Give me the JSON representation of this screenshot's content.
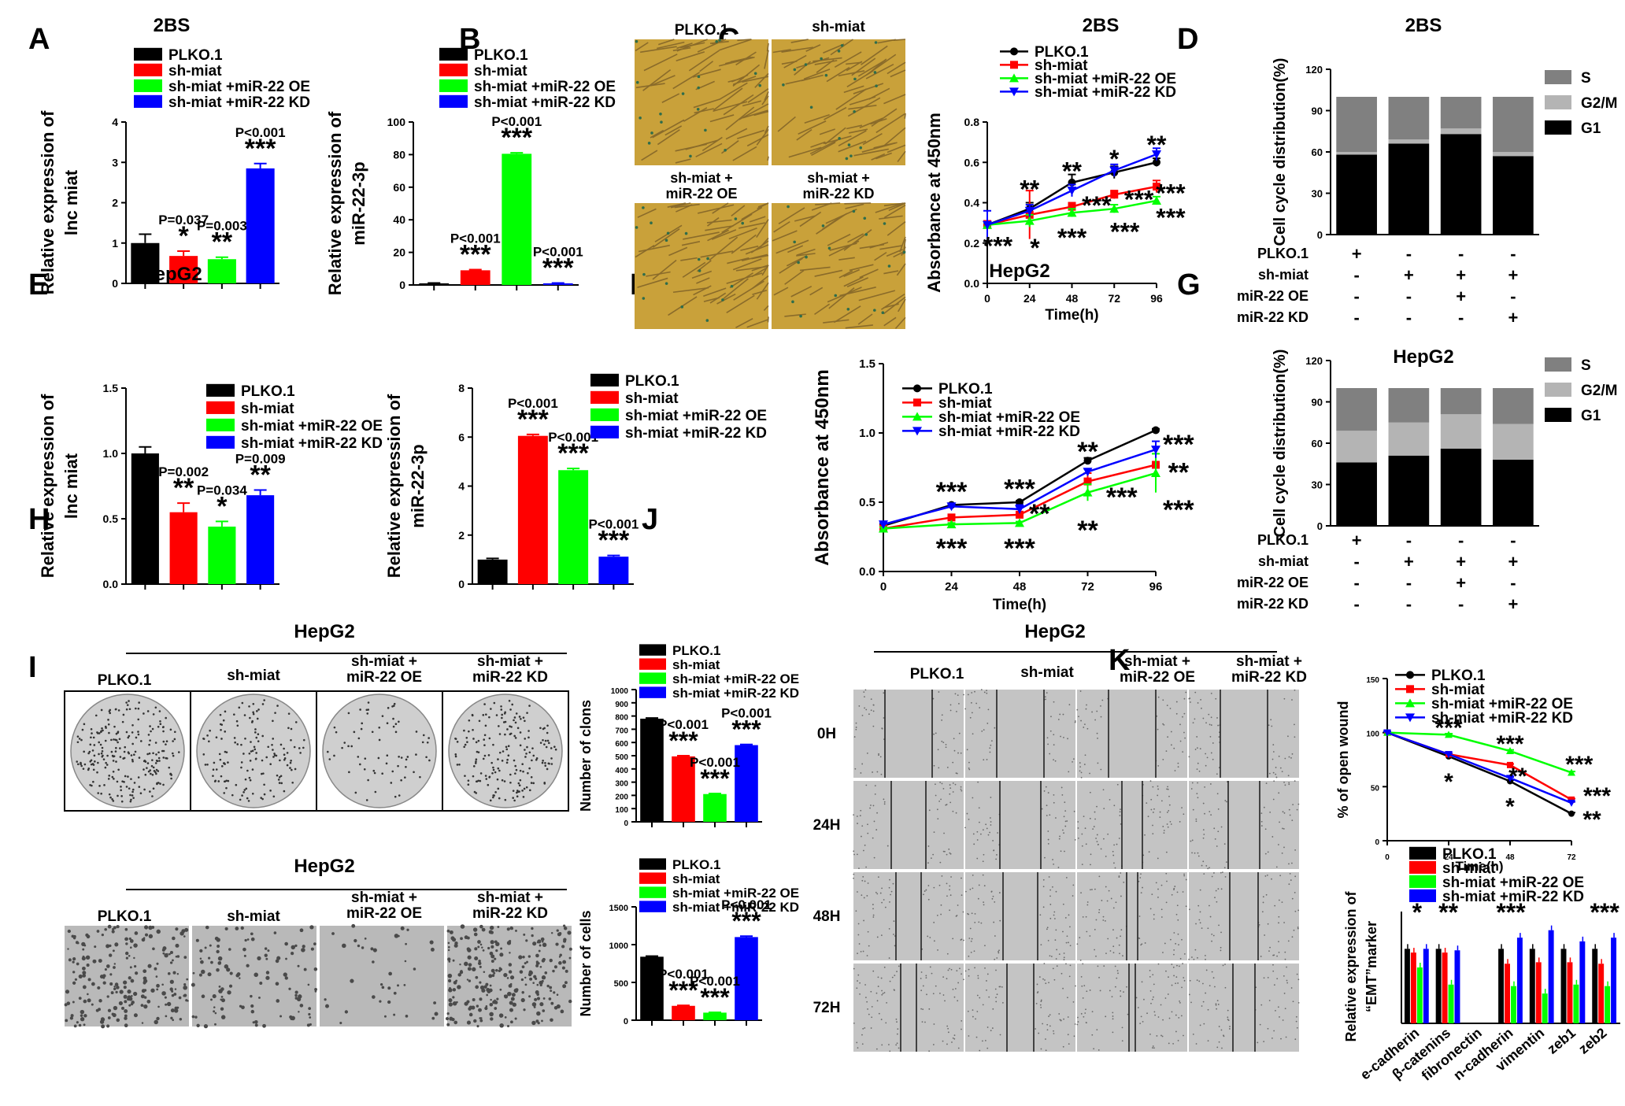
{
  "panel_letters": [
    "A",
    "B",
    "C",
    "D",
    "E",
    "F",
    "G",
    "H",
    "I",
    "J",
    "K"
  ],
  "legend4": [
    "PLKO.1",
    "sh-miat",
    "sh-miat +miR-22 OE",
    "sh-miat +miR-22 KD"
  ],
  "colors": {
    "black": "#000000",
    "red": "#ff0000",
    "green": "#00ff00",
    "blue": "#0000ff",
    "s": "#808080",
    "g2m": "#b4b4b4",
    "g1": "#000000",
    "cell_bg": "#c9a13a",
    "plate_bg": "#cfcfcf"
  },
  "cond_labels": {
    "plko": "PLKO.1",
    "sh": "sh-miat",
    "oe": [
      "sh-miat +",
      "miR-22 OE"
    ],
    "kd": [
      "sh-miat +",
      "miR-22 KD"
    ]
  },
  "time_rows": [
    "0H",
    "24H",
    "48H",
    "72H"
  ],
  "charts": {
    "A1": {
      "title": "2BS",
      "type": "bar",
      "ylabel": [
        "Relative expression of",
        "lnc miat"
      ],
      "ylim": [
        0,
        4
      ],
      "yticks": [
        "0",
        "1",
        "2",
        "3",
        "4"
      ],
      "values": [
        1.0,
        0.68,
        0.6,
        2.85
      ],
      "errors": [
        0.22,
        0.12,
        0.05,
        0.12
      ],
      "annotations": [
        {
          "bar": 1,
          "p": "P=0.037",
          "stars": "*"
        },
        {
          "bar": 2,
          "p": "P=0.003",
          "stars": "**"
        },
        {
          "bar": 3,
          "p": "P<0.001",
          "stars": "***"
        }
      ]
    },
    "A2": {
      "type": "bar",
      "ylabel": [
        "Relative expression of",
        "miR-22-3p"
      ],
      "ylim": [
        0,
        100
      ],
      "yticks": [
        "0",
        "20",
        "40",
        "60",
        "80",
        "100"
      ],
      "values": [
        1.0,
        9.0,
        80.5,
        1.0
      ],
      "errors": [
        0.2,
        0.4,
        0.6,
        0.2
      ],
      "annotations": [
        {
          "bar": 1,
          "p": "P<0.001",
          "stars": "***"
        },
        {
          "bar": 2,
          "p": "P<0.001",
          "stars": "***"
        },
        {
          "bar": 3,
          "p": "P<0.001",
          "stars": "***"
        }
      ]
    },
    "C": {
      "title": "2BS",
      "type": "line",
      "xlabel": "Time(h)",
      "ylabel": "Absorbance at 450nm",
      "x": [
        0,
        24,
        48,
        72,
        96
      ],
      "xticks": [
        "0",
        "24",
        "48",
        "72",
        "96"
      ],
      "ylim": [
        0,
        0.8
      ],
      "yticks": [
        "0.0",
        "0.2",
        "0.4",
        "0.6",
        "0.8"
      ],
      "series": [
        {
          "name": "PLKO.1",
          "values": [
            0.29,
            0.37,
            0.5,
            0.55,
            0.6
          ],
          "errors": [
            0.01,
            0.03,
            0.04,
            0.03,
            0.02
          ]
        },
        {
          "name": "sh-miat",
          "values": [
            0.29,
            0.34,
            0.38,
            0.44,
            0.48
          ],
          "errors": [
            0.02,
            0.12,
            0.02,
            0.02,
            0.03
          ]
        },
        {
          "name": "sh-miat +miR-22 OE",
          "values": [
            0.29,
            0.31,
            0.35,
            0.37,
            0.41
          ],
          "errors": [
            0.01,
            0.03,
            0.02,
            0.02,
            0.02
          ]
        },
        {
          "name": "sh-miat +miR-22 KD",
          "values": [
            0.29,
            0.36,
            0.46,
            0.56,
            0.64
          ],
          "errors": [
            0.07,
            0.03,
            0.03,
            0.03,
            0.03
          ]
        }
      ],
      "annotations": [
        {
          "x": 24,
          "y": 0.47,
          "t": "**"
        },
        {
          "x": 48,
          "y": 0.56,
          "t": "**"
        },
        {
          "x": 72,
          "y": 0.62,
          "t": "*"
        },
        {
          "x": 96,
          "y": 0.69,
          "t": "**"
        },
        {
          "x": 62,
          "y": 0.39,
          "t": "***"
        },
        {
          "x": 86,
          "y": 0.42,
          "t": "***"
        },
        {
          "x": 104,
          "y": 0.45,
          "t": "***"
        },
        {
          "x": 6,
          "y": 0.19,
          "t": "***"
        },
        {
          "x": 27,
          "y": 0.18,
          "t": "*"
        },
        {
          "x": 48,
          "y": 0.23,
          "t": "***"
        },
        {
          "x": 78,
          "y": 0.26,
          "t": "***"
        },
        {
          "x": 104,
          "y": 0.33,
          "t": "***"
        }
      ]
    },
    "D": {
      "title": "2BS",
      "type": "stacked-bar",
      "ylabel": "Cell cycle distribution(%)",
      "ylim": [
        0,
        120
      ],
      "yticks": [
        "0",
        "30",
        "60",
        "90",
        "120"
      ],
      "stack_legend": [
        "S",
        "G2/M",
        "G1"
      ],
      "g1": [
        58,
        66,
        73,
        57
      ],
      "g2m": [
        2,
        3,
        4,
        3
      ],
      "s": [
        40,
        31,
        23,
        40
      ],
      "rows": [
        {
          "label": "PLKO.1",
          "signs": [
            "+",
            "-",
            "-",
            "-"
          ]
        },
        {
          "label": "sh-miat",
          "signs": [
            "-",
            "+",
            "+",
            "+"
          ]
        },
        {
          "label": "miR-22 OE",
          "signs": [
            "-",
            "-",
            "+",
            "-"
          ]
        },
        {
          "label": "miR-22 KD",
          "signs": [
            "-",
            "-",
            "-",
            "+"
          ]
        }
      ]
    },
    "E1": {
      "title": "HepG2",
      "type": "bar",
      "ylabel": [
        "Relative expression of",
        "lnc miat"
      ],
      "ylim": [
        0,
        1.5
      ],
      "yticks": [
        "0.0",
        "0.5",
        "1.0",
        "1.5"
      ],
      "values": [
        1.0,
        0.55,
        0.44,
        0.68
      ],
      "errors": [
        0.05,
        0.07,
        0.04,
        0.04
      ],
      "annotations": [
        {
          "bar": 1,
          "p": "P=0.002",
          "stars": "**"
        },
        {
          "bar": 2,
          "p": "P=0.034",
          "stars": "*"
        },
        {
          "bar": 3,
          "p": "P=0.009",
          "stars": "**"
        }
      ]
    },
    "E2": {
      "type": "bar",
      "ylabel": [
        "Relative expression of",
        "miR-22-3p"
      ],
      "ylim": [
        0,
        8
      ],
      "yticks": [
        "0",
        "2",
        "4",
        "6",
        "8"
      ],
      "values": [
        1.0,
        6.05,
        4.65,
        1.12
      ],
      "errors": [
        0.05,
        0.06,
        0.07,
        0.05
      ],
      "annotations": [
        {
          "bar": 1,
          "p": "P<0.001",
          "stars": "***"
        },
        {
          "bar": 2,
          "p": "P<0.001",
          "stars": "***"
        },
        {
          "bar": 3,
          "p": "P<0.001",
          "stars": "***"
        }
      ]
    },
    "F": {
      "title": "HepG2",
      "type": "line",
      "xlabel": "Time(h)",
      "ylabel": "Absorbance at 450nm",
      "x": [
        0,
        24,
        48,
        72,
        96
      ],
      "xticks": [
        "0",
        "24",
        "48",
        "72",
        "96"
      ],
      "ylim": [
        0,
        1.5
      ],
      "yticks": [
        "0.0",
        "0.5",
        "1.0",
        "1.5"
      ],
      "series": [
        {
          "name": "PLKO.1",
          "values": [
            0.33,
            0.48,
            0.5,
            0.8,
            1.02
          ],
          "errors": [
            0.01,
            0.01,
            0.01,
            0.02,
            0.01
          ]
        },
        {
          "name": "sh-miat",
          "values": [
            0.31,
            0.39,
            0.41,
            0.65,
            0.77
          ],
          "errors": [
            0.01,
            0.01,
            0.02,
            0.06,
            0.13
          ]
        },
        {
          "name": "sh-miat +miR-22 OE",
          "values": [
            0.31,
            0.34,
            0.35,
            0.57,
            0.71
          ],
          "errors": [
            0.01,
            0.01,
            0.01,
            0.06,
            0.14
          ]
        },
        {
          "name": "sh-miat +miR-22 KD",
          "values": [
            0.34,
            0.47,
            0.45,
            0.72,
            0.88
          ],
          "errors": [
            0.01,
            0.01,
            0.03,
            0.02,
            0.06
          ]
        }
      ],
      "annotations": [
        {
          "x": 24,
          "y": 0.58,
          "t": "***"
        },
        {
          "x": 48,
          "y": 0.6,
          "t": "***"
        },
        {
          "x": 72,
          "y": 0.87,
          "t": "**"
        },
        {
          "x": 104,
          "y": 0.92,
          "t": "***"
        },
        {
          "x": 104,
          "y": 0.72,
          "t": "**"
        },
        {
          "x": 55,
          "y": 0.42,
          "t": "**"
        },
        {
          "x": 84,
          "y": 0.54,
          "t": "***"
        },
        {
          "x": 104,
          "y": 0.45,
          "t": "***"
        },
        {
          "x": 24,
          "y": 0.17,
          "t": "***"
        },
        {
          "x": 48,
          "y": 0.17,
          "t": "***"
        },
        {
          "x": 72,
          "y": 0.3,
          "t": "**"
        }
      ]
    },
    "G": {
      "title": "HepG2",
      "type": "stacked-bar",
      "ylabel": "Cell cycle distribution(%)",
      "ylim": [
        0,
        120
      ],
      "yticks": [
        "0",
        "30",
        "60",
        "90",
        "120"
      ],
      "stack_legend": [
        "S",
        "G2/M",
        "G1"
      ],
      "g1": [
        46,
        51,
        56,
        48
      ],
      "g2m": [
        23,
        24,
        25,
        26
      ],
      "s": [
        31,
        25,
        19,
        26
      ],
      "rows": [
        {
          "label": "PLKO.1",
          "signs": [
            "+",
            "-",
            "-",
            "-"
          ]
        },
        {
          "label": "sh-miat",
          "signs": [
            "-",
            "+",
            "+",
            "+"
          ]
        },
        {
          "label": "miR-22 OE",
          "signs": [
            "-",
            "-",
            "+",
            "-"
          ]
        },
        {
          "label": "miR-22 KD",
          "signs": [
            "-",
            "-",
            "-",
            "+"
          ]
        }
      ]
    },
    "H": {
      "title": "HepG2",
      "type": "bar",
      "ylabel": "Number of clons",
      "ylim": [
        0,
        1000
      ],
      "yticks": [
        "0",
        "100",
        "200",
        "300",
        "400",
        "500",
        "600",
        "700",
        "800",
        "900",
        "1000"
      ],
      "values": [
        780,
        495,
        210,
        580
      ],
      "errors": [
        5,
        5,
        4,
        5
      ],
      "annotations": [
        {
          "bar": 1,
          "p": "P<0.001",
          "stars": "***"
        },
        {
          "bar": 2,
          "p": "P<0.001",
          "stars": "***"
        },
        {
          "bar": 3,
          "p": "P<0.001",
          "stars": "***"
        }
      ]
    },
    "I": {
      "title": "HepG2",
      "type": "bar",
      "ylabel": "Number of cells",
      "ylim": [
        0,
        1500
      ],
      "yticks": [
        "0",
        "500",
        "1000",
        "1500"
      ],
      "values": [
        840,
        190,
        100,
        1100
      ],
      "errors": [
        8,
        6,
        4,
        12
      ],
      "annotations": [
        {
          "bar": 1,
          "p": "P<0.001",
          "stars": "***"
        },
        {
          "bar": 2,
          "p": "P<0.001",
          "stars": "***"
        },
        {
          "bar": 3,
          "p": "P<0.001",
          "stars": "***"
        }
      ]
    },
    "J": {
      "title": "HepG2",
      "type": "line",
      "xlabel": "Time(h)",
      "ylabel": "% of open wound",
      "x": [
        0,
        24,
        48,
        72
      ],
      "xticks": [
        "0",
        "24",
        "48",
        "72"
      ],
      "ylim": [
        0,
        150
      ],
      "yticks": [
        "0",
        "50",
        "100",
        "150"
      ],
      "series": [
        {
          "name": "PLKO.1",
          "values": [
            100,
            78,
            55,
            25
          ],
          "errors": [
            1,
            1,
            1,
            1
          ]
        },
        {
          "name": "sh-miat",
          "values": [
            100,
            80,
            70,
            38
          ],
          "errors": [
            1,
            1,
            1,
            1
          ]
        },
        {
          "name": "sh-miat +miR-22 OE",
          "values": [
            100,
            98,
            83,
            63
          ],
          "errors": [
            1,
            1,
            1,
            1
          ]
        },
        {
          "name": "sh-miat +miR-22 KD",
          "values": [
            100,
            80,
            58,
            35
          ],
          "errors": [
            1,
            1,
            1,
            1
          ]
        }
      ],
      "annotations": [
        {
          "x": 24,
          "y": 106,
          "t": "***"
        },
        {
          "x": 48,
          "y": 91,
          "t": "***"
        },
        {
          "x": 75,
          "y": 72,
          "t": "***"
        },
        {
          "x": 51,
          "y": 61,
          "t": "**"
        },
        {
          "x": 82,
          "y": 43,
          "t": "***"
        },
        {
          "x": 24,
          "y": 56,
          "t": "*"
        },
        {
          "x": 48,
          "y": 33,
          "t": "*"
        },
        {
          "x": 80,
          "y": 21,
          "t": "**"
        }
      ]
    },
    "K": {
      "type": "grouped-bar",
      "ylabel": [
        "Relative expression of",
        "“EMT”marker"
      ],
      "categories": [
        "e-cadherin",
        "β-catenins",
        "fibronectin",
        "n-cadherin",
        "vimentin",
        "zeb1",
        "zeb2"
      ],
      "series": [
        {
          "name": "PLKO.1",
          "values": [
            1.0,
            1.0,
            0.0,
            1.0,
            1.0,
            1.0,
            1.0
          ]
        },
        {
          "name": "sh-miat",
          "values": [
            0.95,
            0.95,
            0.0,
            0.8,
            0.82,
            0.82,
            0.8
          ]
        },
        {
          "name": "sh-miat +miR-22 OE",
          "values": [
            0.75,
            0.52,
            0.0,
            0.5,
            0.4,
            0.52,
            0.5
          ]
        },
        {
          "name": "sh-miat +miR-22 KD",
          "values": [
            1.0,
            0.98,
            0.0,
            1.15,
            1.25,
            1.1,
            1.15
          ]
        }
      ],
      "ylim": [
        0,
        1.5
      ],
      "annotations": [
        {
          "cat": 0,
          "t": "*"
        },
        {
          "cat": 1,
          "t": "**"
        },
        {
          "cat": 3,
          "t": "***"
        },
        {
          "cat": 6,
          "t": "***"
        }
      ]
    }
  }
}
